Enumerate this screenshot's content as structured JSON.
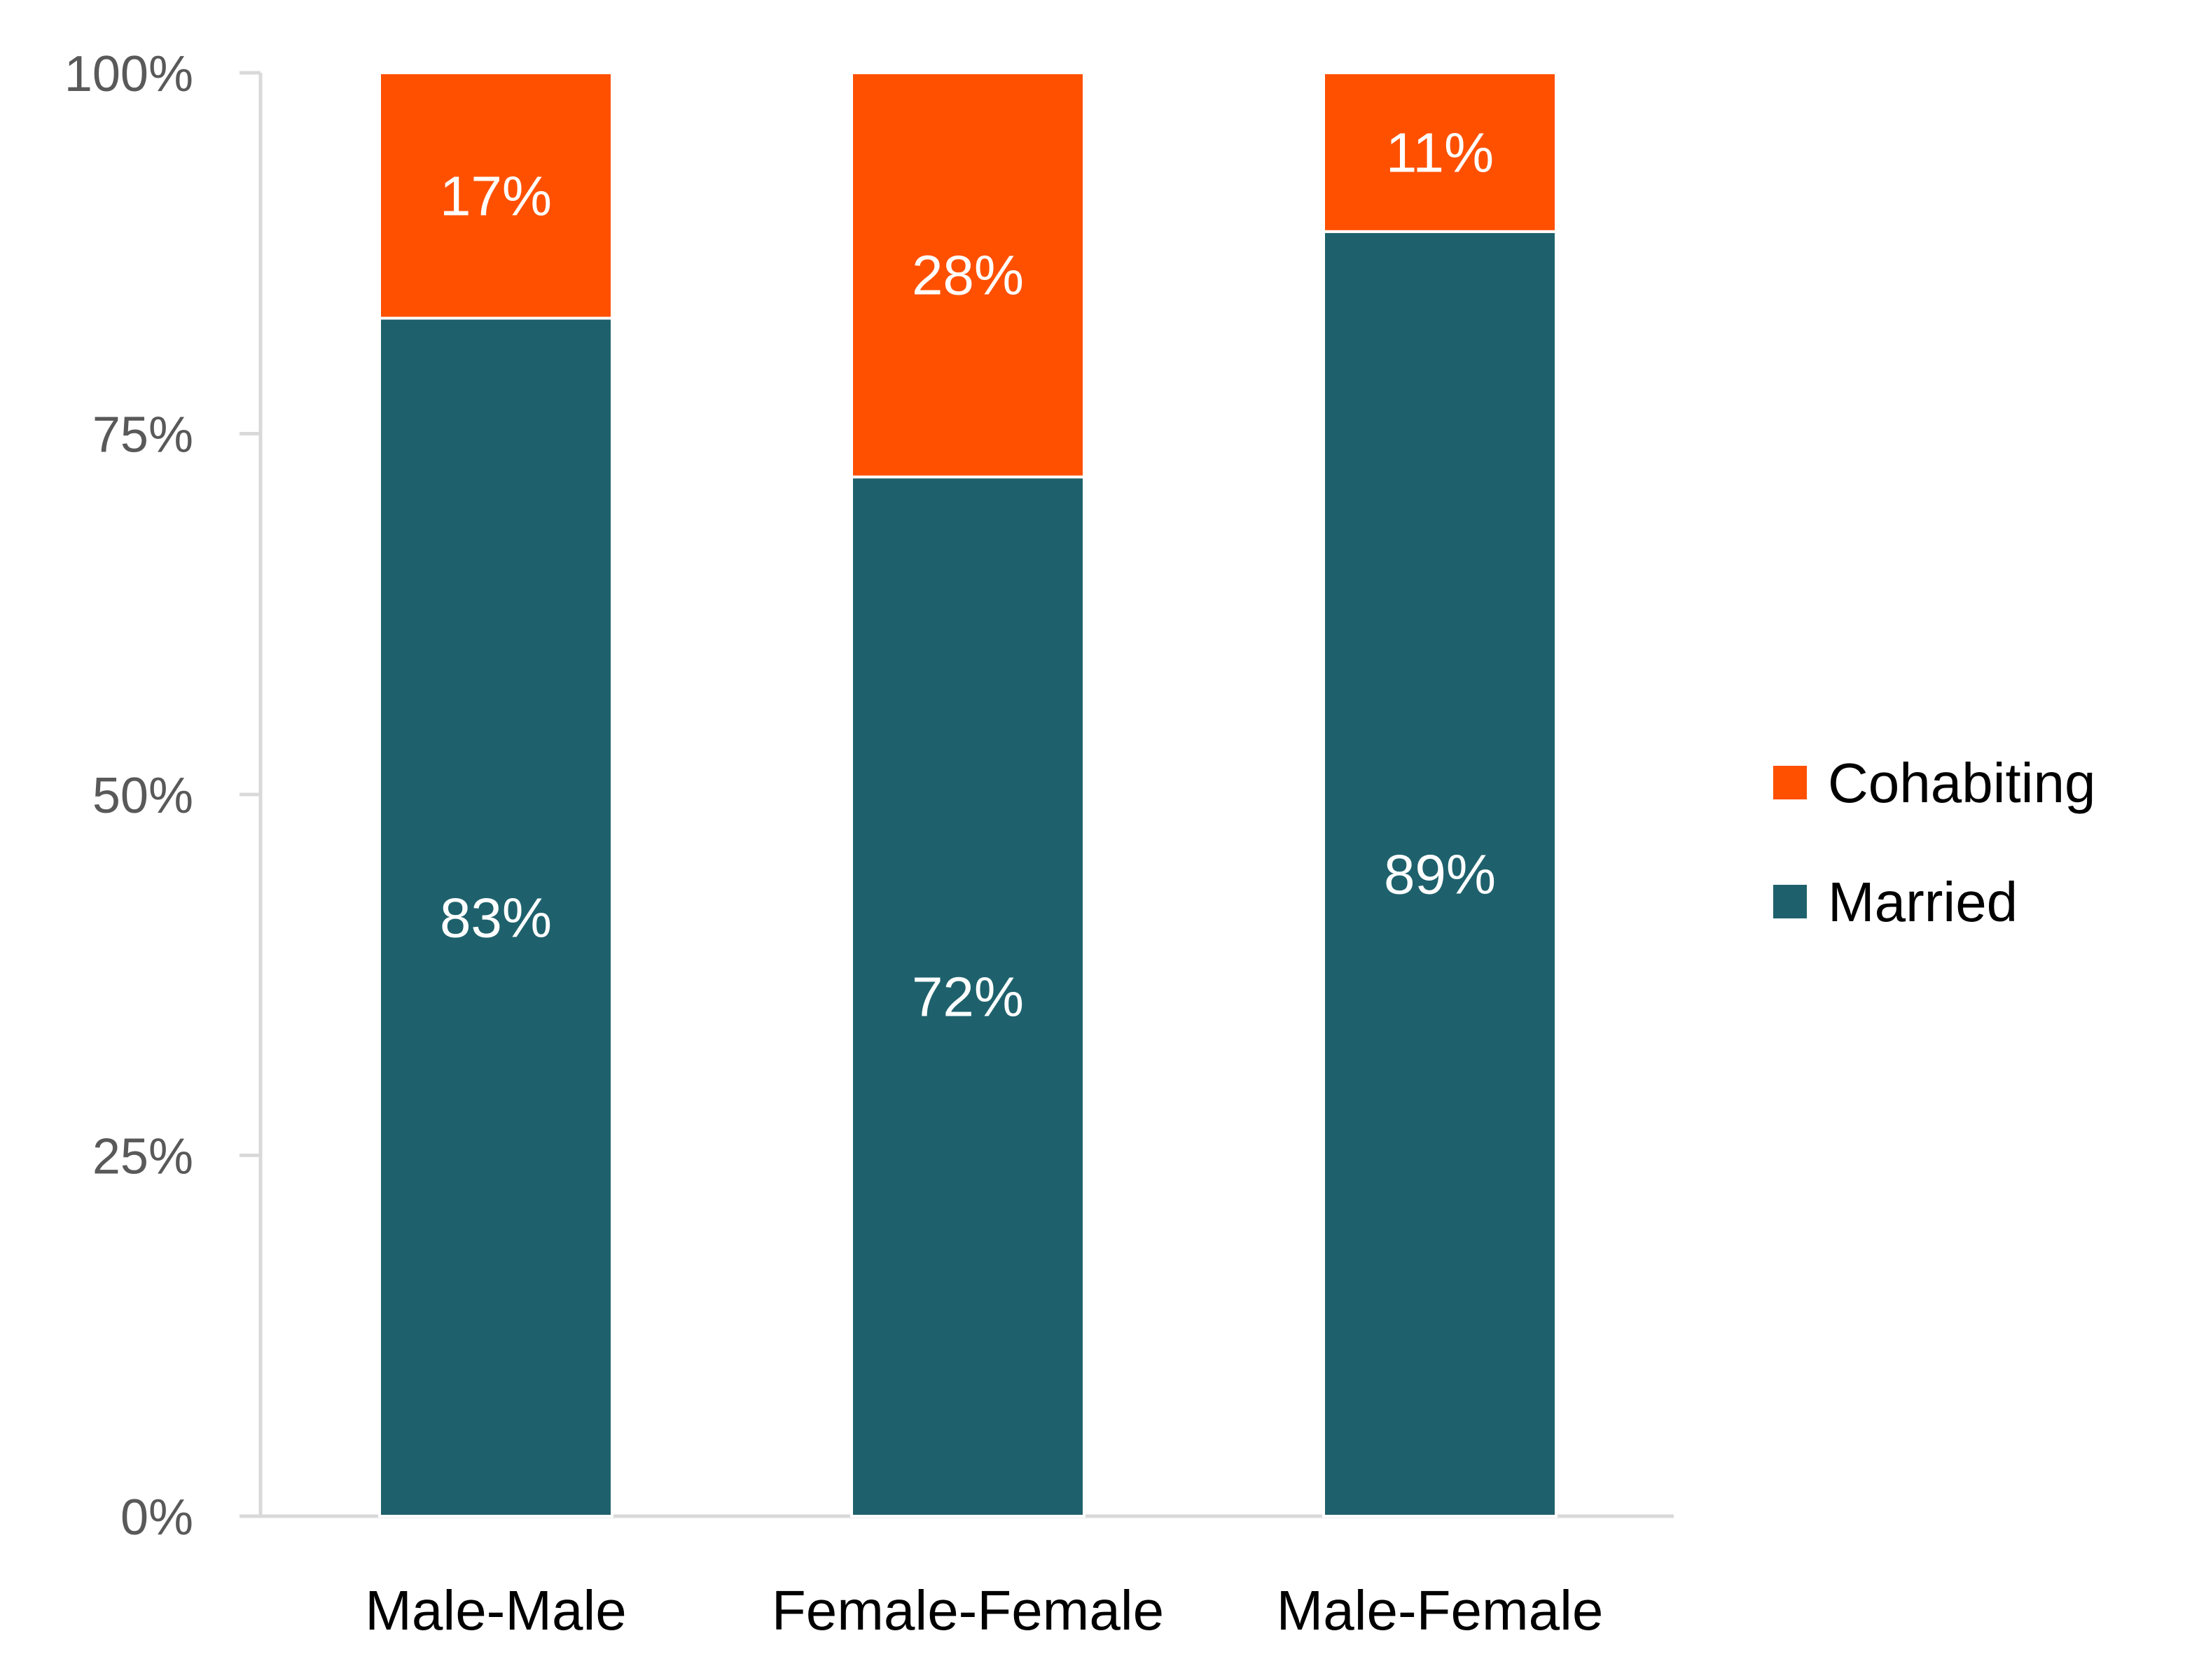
{
  "chart_data": {
    "type": "bar",
    "stacked": true,
    "title": "",
    "xlabel": "",
    "ylabel": "",
    "ylim": [
      0,
      100
    ],
    "yticks": [
      "0%",
      "25%",
      "50%",
      "75%",
      "100%"
    ],
    "ytick_values": [
      0,
      25,
      50,
      75,
      100
    ],
    "categories": [
      "Male-Male",
      "Female-Female",
      "Male-Female"
    ],
    "series": [
      {
        "name": "Married",
        "color": "#1E616C",
        "values": [
          83,
          72,
          89
        ],
        "labels": [
          "83%",
          "72%",
          "89%"
        ]
      },
      {
        "name": "Cohabiting",
        "color": "#FF5000",
        "values": [
          17,
          28,
          11
        ],
        "labels": [
          "17%",
          "28%",
          "11%"
        ]
      }
    ],
    "legend": {
      "placement": "right",
      "entries": [
        "Cohabiting",
        "Married"
      ]
    },
    "grid": false
  }
}
